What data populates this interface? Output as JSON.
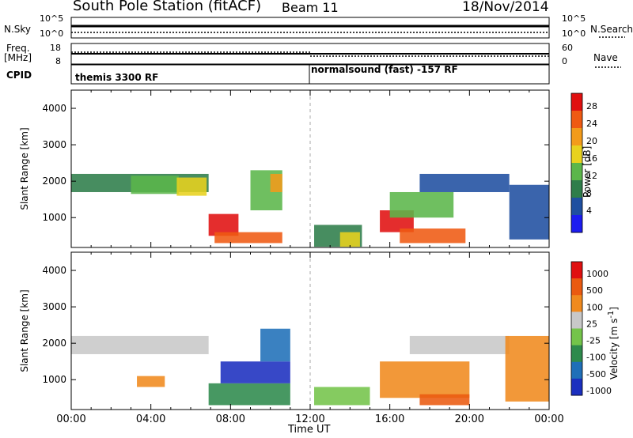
{
  "header": {
    "title": "South Pole Station (fitACF)",
    "beam": "Beam 11",
    "date": "18/Nov/2014"
  },
  "colors": {
    "power": [
      "#1c1cf0",
      "#1f4fa0",
      "#2e7d4a",
      "#5bb64a",
      "#e8d21e",
      "#f39b1a",
      "#ef5a12",
      "#e01010"
    ],
    "velocity": [
      "#1b2fbf",
      "#1f6fb8",
      "#2e8a4c",
      "#74c44a",
      "#c8c8c8",
      "#f08a1e",
      "#ea5a10",
      "#e01010"
    ]
  },
  "top_panels": {
    "nsky_label": "N.Sky",
    "nsky_ticks": [
      "10^5",
      "10^0"
    ],
    "nsearch_label": "N.Search",
    "nsearch_ticks": [
      "10^5",
      "10^0"
    ],
    "freq_label": "Freq.",
    "freq_unit": "[MHz]",
    "freq_ticks": [
      "18",
      "8"
    ],
    "nave_label": "Nave",
    "nave_ticks": [
      "60",
      "0"
    ],
    "cpid_label": "CPID",
    "cpid_segments": [
      "themis 3300 RF",
      "normalsound (fast) -157 RF"
    ]
  },
  "chart_data": [
    {
      "type": "heatmap",
      "name": "power",
      "ylabel": "Slant Range [km]",
      "colorbar_label": "Power [dB]",
      "colorbar_ticks": [
        "28",
        "24",
        "20",
        "16",
        "12",
        "8",
        "4"
      ],
      "ylim": [
        180,
        4500
      ],
      "yticks": [
        "1000",
        "2000",
        "3000",
        "4000"
      ],
      "xlim": [
        "00:00",
        "24:00"
      ],
      "xticks": [
        "00:00",
        "04:00",
        "08:00",
        "12:00",
        "16:00",
        "20:00",
        "00:00"
      ],
      "regions": [
        {
          "t0": 0.0,
          "t1": 6.9,
          "r0": 1700,
          "r1": 2200,
          "level": 2
        },
        {
          "t0": 3.0,
          "t1": 5.4,
          "r0": 1650,
          "r1": 2150,
          "level": 3
        },
        {
          "t0": 5.3,
          "t1": 6.8,
          "r0": 1600,
          "r1": 2100,
          "level": 4
        },
        {
          "t0": 6.9,
          "t1": 8.4,
          "r0": 500,
          "r1": 1100,
          "level": 7
        },
        {
          "t0": 7.2,
          "t1": 10.6,
          "r0": 300,
          "r1": 600,
          "level": 6
        },
        {
          "t0": 9.0,
          "t1": 10.6,
          "r0": 1200,
          "r1": 2300,
          "level": 3
        },
        {
          "t0": 10.0,
          "t1": 10.6,
          "r0": 1700,
          "r1": 2200,
          "level": 5
        },
        {
          "t0": 12.2,
          "t1": 14.6,
          "r0": 200,
          "r1": 800,
          "level": 2
        },
        {
          "t0": 13.5,
          "t1": 14.5,
          "r0": 200,
          "r1": 600,
          "level": 4
        },
        {
          "t0": 15.5,
          "t1": 17.2,
          "r0": 600,
          "r1": 1200,
          "level": 7
        },
        {
          "t0": 16.0,
          "t1": 19.2,
          "r0": 1000,
          "r1": 1700,
          "level": 3
        },
        {
          "t0": 16.5,
          "t1": 19.8,
          "r0": 300,
          "r1": 700,
          "level": 6
        },
        {
          "t0": 17.5,
          "t1": 22.0,
          "r0": 1700,
          "r1": 2200,
          "level": 1
        },
        {
          "t0": 22.0,
          "t1": 24.0,
          "r0": 400,
          "r1": 1900,
          "level": 1
        }
      ]
    },
    {
      "type": "heatmap",
      "name": "velocity",
      "ylabel": "Slant Range [km]",
      "colorbar_label": "Velocity [m s^-1]",
      "colorbar_ticks": [
        "1000",
        "500",
        "100",
        "25",
        "-25",
        "-100",
        "-500",
        "-1000"
      ],
      "ylim": [
        180,
        4500
      ],
      "yticks": [
        "1000",
        "2000",
        "3000",
        "4000"
      ],
      "xlim": [
        "00:00",
        "24:00"
      ],
      "xticks": [
        "00:00",
        "04:00",
        "08:00",
        "12:00",
        "16:00",
        "20:00",
        "00:00"
      ],
      "xlabel": "Time UT",
      "regions": [
        {
          "t0": 0.0,
          "t1": 6.9,
          "r0": 1700,
          "r1": 2200,
          "level": 4
        },
        {
          "t0": 3.3,
          "t1": 4.7,
          "r0": 800,
          "r1": 1100,
          "level": 5
        },
        {
          "t0": 6.9,
          "t1": 11.0,
          "r0": 300,
          "r1": 900,
          "level": 2
        },
        {
          "t0": 7.5,
          "t1": 11.0,
          "r0": 900,
          "r1": 1500,
          "level": 0
        },
        {
          "t0": 9.5,
          "t1": 11.0,
          "r0": 1500,
          "r1": 2400,
          "level": 1
        },
        {
          "t0": 12.2,
          "t1": 15.0,
          "r0": 300,
          "r1": 800,
          "level": 3
        },
        {
          "t0": 15.5,
          "t1": 20.0,
          "r0": 500,
          "r1": 1500,
          "level": 5
        },
        {
          "t0": 17.5,
          "t1": 20.0,
          "r0": 300,
          "r1": 600,
          "level": 6
        },
        {
          "t0": 17.0,
          "t1": 22.0,
          "r0": 1700,
          "r1": 2200,
          "level": 4
        },
        {
          "t0": 21.8,
          "t1": 24.0,
          "r0": 400,
          "r1": 2200,
          "level": 5
        }
      ]
    }
  ]
}
